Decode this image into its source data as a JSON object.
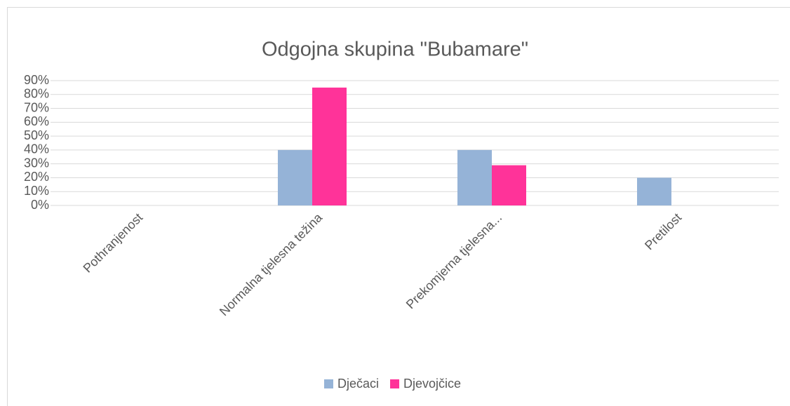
{
  "chart_data": {
    "type": "bar",
    "title": "Odgojna skupina \"Bubamare\"",
    "categories": [
      "Pothranjenost",
      "Normalna tjelesna težina",
      "Prekomjerna tjelesna...",
      "Pretilost"
    ],
    "series": [
      {
        "name": "Dječaci",
        "color": "#95b3d7",
        "values": [
          0,
          40,
          40,
          20
        ]
      },
      {
        "name": "Djevojčice",
        "color": "#ff3399",
        "values": [
          0,
          85,
          29,
          0
        ]
      }
    ],
    "ylim": [
      0,
      90
    ],
    "yticks": [
      {
        "value": 0,
        "label": "0%"
      },
      {
        "value": 10,
        "label": "10%"
      },
      {
        "value": 20,
        "label": "20%"
      },
      {
        "value": 30,
        "label": "30%"
      },
      {
        "value": 40,
        "label": "40%"
      },
      {
        "value": 50,
        "label": "50%"
      },
      {
        "value": 60,
        "label": "60%"
      },
      {
        "value": 70,
        "label": "70%"
      },
      {
        "value": 80,
        "label": "80%"
      },
      {
        "value": 90,
        "label": "90%"
      }
    ],
    "grid": true,
    "legend": "bottom"
  }
}
